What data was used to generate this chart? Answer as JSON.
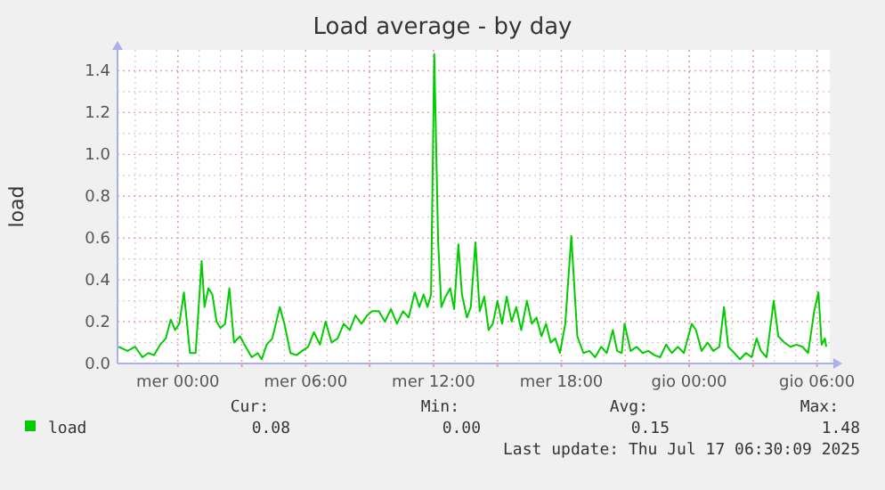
{
  "chart_data": {
    "type": "line",
    "title": "Load average - by day",
    "ylabel": "load",
    "x": [
      "2025-07-15T21:13",
      "2025-07-15T21:38",
      "2025-07-15T22:00",
      "2025-07-15T22:20",
      "2025-07-15T22:37",
      "2025-07-15T22:53",
      "2025-07-15T23:10",
      "2025-07-15T23:26",
      "2025-07-15T23:40",
      "2025-07-15T23:52",
      "2025-07-16T00:04",
      "2025-07-16T00:17",
      "2025-07-16T00:34",
      "2025-07-16T00:50",
      "2025-07-16T01:07",
      "2025-07-16T01:15",
      "2025-07-16T01:26",
      "2025-07-16T01:37",
      "2025-07-16T01:49",
      "2025-07-16T02:00",
      "2025-07-16T02:13",
      "2025-07-16T02:25",
      "2025-07-16T02:38",
      "2025-07-16T02:55",
      "2025-07-16T03:11",
      "2025-07-16T03:28",
      "2025-07-16T03:45",
      "2025-07-16T03:56",
      "2025-07-16T04:10",
      "2025-07-16T04:26",
      "2025-07-16T04:47",
      "2025-07-16T05:00",
      "2025-07-16T05:17",
      "2025-07-16T05:34",
      "2025-07-16T05:50",
      "2025-07-16T06:07",
      "2025-07-16T06:23",
      "2025-07-16T06:40",
      "2025-07-16T06:56",
      "2025-07-16T07:13",
      "2025-07-16T07:30",
      "2025-07-16T07:47",
      "2025-07-16T08:04",
      "2025-07-16T08:20",
      "2025-07-16T08:37",
      "2025-07-16T08:53",
      "2025-07-16T09:07",
      "2025-07-16T09:26",
      "2025-07-16T09:43",
      "2025-07-16T10:00",
      "2025-07-16T10:17",
      "2025-07-16T10:34",
      "2025-07-16T10:50",
      "2025-07-16T11:07",
      "2025-07-16T11:20",
      "2025-07-16T11:32",
      "2025-07-16T11:43",
      "2025-07-16T11:53",
      "2025-07-16T12:02",
      "2025-07-16T12:13",
      "2025-07-16T12:22",
      "2025-07-16T12:34",
      "2025-07-16T12:47",
      "2025-07-16T12:58",
      "2025-07-16T13:10",
      "2025-07-16T13:20",
      "2025-07-16T13:34",
      "2025-07-16T13:45",
      "2025-07-16T13:58",
      "2025-07-16T14:10",
      "2025-07-16T14:23",
      "2025-07-16T14:35",
      "2025-07-16T14:47",
      "2025-07-16T15:00",
      "2025-07-16T15:13",
      "2025-07-16T15:26",
      "2025-07-16T15:40",
      "2025-07-16T15:53",
      "2025-07-16T16:07",
      "2025-07-16T16:23",
      "2025-07-16T16:37",
      "2025-07-16T16:50",
      "2025-07-16T17:04",
      "2025-07-16T17:17",
      "2025-07-16T17:30",
      "2025-07-16T17:43",
      "2025-07-16T17:56",
      "2025-07-16T18:11",
      "2025-07-16T18:28",
      "2025-07-16T18:45",
      "2025-07-16T19:02",
      "2025-07-16T19:19",
      "2025-07-16T19:35",
      "2025-07-16T19:52",
      "2025-07-16T20:08",
      "2025-07-16T20:25",
      "2025-07-16T20:37",
      "2025-07-16T20:50",
      "2025-07-16T20:58",
      "2025-07-16T21:15",
      "2025-07-16T21:32",
      "2025-07-16T21:49",
      "2025-07-16T22:05",
      "2025-07-16T22:22",
      "2025-07-16T22:38",
      "2025-07-16T22:55",
      "2025-07-16T23:11",
      "2025-07-16T23:28",
      "2025-07-16T23:45",
      "2025-07-17T00:07",
      "2025-07-17T00:19",
      "2025-07-17T00:35",
      "2025-07-17T00:52",
      "2025-07-17T01:08",
      "2025-07-17T01:25",
      "2025-07-17T01:38",
      "2025-07-17T01:50",
      "2025-07-17T02:07",
      "2025-07-17T02:23",
      "2025-07-17T02:40",
      "2025-07-17T02:56",
      "2025-07-17T03:10",
      "2025-07-17T03:22",
      "2025-07-17T03:38",
      "2025-07-17T03:58",
      "2025-07-17T04:11",
      "2025-07-17T04:28",
      "2025-07-17T04:45",
      "2025-07-17T05:02",
      "2025-07-17T05:19",
      "2025-07-17T05:35",
      "2025-07-17T05:52",
      "2025-07-17T06:04",
      "2025-07-17T06:13",
      "2025-07-17T06:22",
      "2025-07-17T06:26"
    ],
    "series": [
      {
        "name": "load",
        "color": "#00cc00",
        "values": [
          0.08,
          0.06,
          0.08,
          0.03,
          0.05,
          0.04,
          0.09,
          0.12,
          0.21,
          0.16,
          0.19,
          0.34,
          0.05,
          0.05,
          0.49,
          0.27,
          0.36,
          0.33,
          0.2,
          0.17,
          0.19,
          0.36,
          0.1,
          0.13,
          0.08,
          0.03,
          0.05,
          0.02,
          0.09,
          0.12,
          0.27,
          0.19,
          0.05,
          0.04,
          0.06,
          0.08,
          0.15,
          0.09,
          0.2,
          0.1,
          0.12,
          0.19,
          0.16,
          0.23,
          0.19,
          0.23,
          0.25,
          0.25,
          0.2,
          0.26,
          0.19,
          0.25,
          0.22,
          0.34,
          0.27,
          0.33,
          0.27,
          0.33,
          1.48,
          0.58,
          0.27,
          0.32,
          0.36,
          0.26,
          0.57,
          0.33,
          0.22,
          0.27,
          0.58,
          0.25,
          0.32,
          0.16,
          0.19,
          0.3,
          0.19,
          0.32,
          0.2,
          0.27,
          0.16,
          0.3,
          0.19,
          0.22,
          0.13,
          0.19,
          0.1,
          0.12,
          0.05,
          0.19,
          0.61,
          0.13,
          0.05,
          0.06,
          0.03,
          0.08,
          0.05,
          0.16,
          0.06,
          0.05,
          0.19,
          0.06,
          0.08,
          0.05,
          0.06,
          0.04,
          0.03,
          0.09,
          0.05,
          0.08,
          0.05,
          0.19,
          0.16,
          0.06,
          0.1,
          0.06,
          0.08,
          0.27,
          0.08,
          0.05,
          0.02,
          0.05,
          0.03,
          0.12,
          0.06,
          0.03,
          0.3,
          0.13,
          0.1,
          0.08,
          0.09,
          0.08,
          0.05,
          0.25,
          0.34,
          0.09,
          0.12,
          0.08
        ]
      }
    ],
    "xlim": [
      "2025-07-15T21:10",
      "2025-07-17T06:36"
    ],
    "xticks": [
      {
        "value": "2025-07-16T00:00",
        "label": "mer 00:00"
      },
      {
        "value": "2025-07-16T03:00",
        "label": null
      },
      {
        "value": "2025-07-16T06:00",
        "label": "mer 06:00"
      },
      {
        "value": "2025-07-16T09:00",
        "label": null
      },
      {
        "value": "2025-07-16T12:00",
        "label": "mer 12:00"
      },
      {
        "value": "2025-07-16T15:00",
        "label": null
      },
      {
        "value": "2025-07-16T18:00",
        "label": "mer 18:00"
      },
      {
        "value": "2025-07-16T21:00",
        "label": null
      },
      {
        "value": "2025-07-17T00:00",
        "label": "gio 00:00"
      },
      {
        "value": "2025-07-17T03:00",
        "label": null
      },
      {
        "value": "2025-07-17T06:00",
        "label": "gio 06:00"
      }
    ],
    "ylim": [
      0,
      1.5
    ],
    "yticks": [
      {
        "value": 0,
        "label": "0.0"
      },
      {
        "value": 0.2,
        "label": "0.2"
      },
      {
        "value": 0.4,
        "label": "0.4"
      },
      {
        "value": 0.6,
        "label": "0.6"
      },
      {
        "value": 0.8,
        "label": "0.8"
      },
      {
        "value": 1.0,
        "label": "1.0"
      },
      {
        "value": 1.2,
        "label": "1.2"
      },
      {
        "value": 1.4,
        "label": "1.4"
      }
    ],
    "grid": true,
    "legend": "bottom",
    "line_style": "solid",
    "annotations": [
      "Cur:",
      "Min:",
      "Avg:",
      "Max:",
      "0.08",
      "0.00",
      "0.15",
      "1.48",
      "Last update: Thu Jul 17 06:30:09 2025"
    ]
  }
}
